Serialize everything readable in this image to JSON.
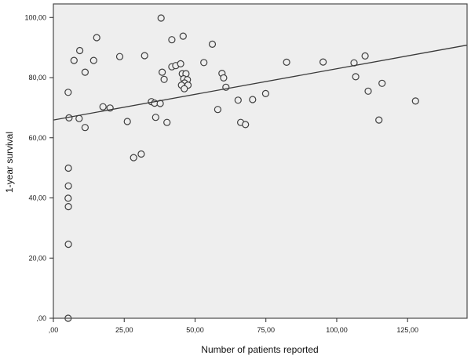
{
  "figure": {
    "background": "#ffffff"
  },
  "chart_data": {
    "type": "scatter",
    "title": "",
    "xlabel": "Number of patients reported",
    "ylabel": "1-year survival",
    "xlim": [
      0,
      146
    ],
    "ylim": [
      0,
      104.5
    ],
    "grid": false,
    "legend": null,
    "plot_bg": "#eeeeee",
    "border_color": "#4a4a4a",
    "tick_color": "#2a2a2a",
    "x_tick_values": [
      0,
      25,
      50,
      75,
      100,
      125
    ],
    "x_tick_labels": [
      ",00",
      "25,00",
      "50,00",
      "75,00",
      "100,00",
      "125,00"
    ],
    "y_tick_values": [
      0,
      20,
      40,
      60,
      80,
      100
    ],
    "y_tick_labels": [
      ",00",
      "20,00",
      "40,00",
      "60,00",
      "80,00",
      "100,00"
    ],
    "point_style": {
      "shape": "circle",
      "radius": 4,
      "stroke": "#3f3f3f",
      "fill": "#eeeeee"
    },
    "trendline": {
      "x_start": 0,
      "y_start": 65.9,
      "x_end": 146,
      "y_end": 90.8,
      "color": "#3a3a3a"
    },
    "points": [
      [
        5.2,
        75.1
      ],
      [
        5.5,
        66.6
      ],
      [
        5.3,
        49.9
      ],
      [
        5.3,
        44.0
      ],
      [
        5.2,
        39.9
      ],
      [
        5.3,
        37.1
      ],
      [
        5.3,
        24.6
      ],
      [
        5.2,
        0.0
      ],
      [
        7.3,
        85.7
      ],
      [
        9.3,
        89.0
      ],
      [
        14.2,
        85.7
      ],
      [
        11.2,
        81.8
      ],
      [
        15.3,
        93.3
      ],
      [
        9.1,
        66.4
      ],
      [
        11.2,
        63.4
      ],
      [
        17.5,
        70.3
      ],
      [
        20.0,
        69.9
      ],
      [
        23.4,
        87.0
      ],
      [
        26.1,
        65.4
      ],
      [
        28.3,
        53.4
      ],
      [
        31.0,
        54.6
      ],
      [
        32.2,
        87.3
      ],
      [
        38.0,
        99.8
      ],
      [
        34.6,
        72.0
      ],
      [
        35.7,
        71.5
      ],
      [
        37.7,
        71.4
      ],
      [
        36.1,
        66.8
      ],
      [
        40.1,
        65.1
      ],
      [
        38.4,
        81.8
      ],
      [
        39.1,
        79.4
      ],
      [
        41.8,
        92.6
      ],
      [
        45.8,
        93.8
      ],
      [
        41.8,
        83.6
      ],
      [
        43.2,
        84.0
      ],
      [
        44.9,
        84.6
      ],
      [
        45.5,
        81.3
      ],
      [
        46.8,
        81.3
      ],
      [
        46.0,
        79.6
      ],
      [
        47.3,
        79.3
      ],
      [
        46.3,
        78.2
      ],
      [
        47.5,
        77.5
      ],
      [
        45.2,
        77.5
      ],
      [
        46.2,
        76.3
      ],
      [
        53.1,
        85.0
      ],
      [
        56.1,
        91.1
      ],
      [
        59.5,
        81.4
      ],
      [
        60.1,
        79.9
      ],
      [
        60.9,
        76.8
      ],
      [
        58.0,
        69.4
      ],
      [
        65.2,
        72.5
      ],
      [
        70.3,
        72.7
      ],
      [
        74.9,
        74.7
      ],
      [
        66.1,
        65.1
      ],
      [
        67.8,
        64.4
      ],
      [
        82.3,
        85.1
      ],
      [
        95.2,
        85.2
      ],
      [
        106.1,
        84.9
      ],
      [
        110.0,
        87.2
      ],
      [
        106.7,
        80.3
      ],
      [
        116.0,
        78.1
      ],
      [
        111.1,
        75.5
      ],
      [
        127.8,
        72.2
      ],
      [
        114.9,
        65.9
      ]
    ]
  }
}
